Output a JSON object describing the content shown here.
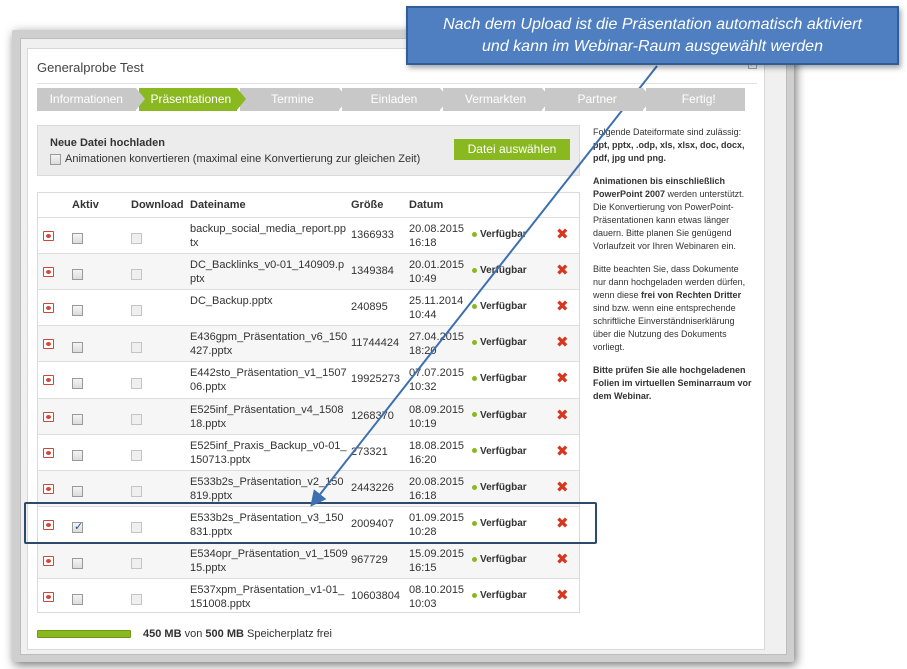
{
  "window": {
    "title": "Generalprobe Test"
  },
  "steps": [
    {
      "label": "Informationen",
      "active": false
    },
    {
      "label": "Präsentationen",
      "active": true
    },
    {
      "label": "Termine",
      "active": false
    },
    {
      "label": "Einladen",
      "active": false
    },
    {
      "label": "Vermarkten",
      "active": false
    },
    {
      "label": "Partner",
      "active": false
    },
    {
      "label": "Fertig!",
      "active": false
    }
  ],
  "upload": {
    "title": "Neue Datei hochladen",
    "convert_label": "Animationen konvertieren (maximal eine Konvertierung zur gleichen Zeit)",
    "select_button": "Datei auswählen"
  },
  "table": {
    "headers": {
      "aktiv": "Aktiv",
      "download": "Download",
      "name": "Dateiname",
      "size": "Größe",
      "date": "Datum"
    },
    "rows": [
      {
        "name": "backup_social_media_report.pptx",
        "size": "1366933",
        "date": "20.08.2015 16:18",
        "status": "Verfügbar",
        "active": false
      },
      {
        "name": "DC_Backlinks_v0-01_140909.pptx",
        "size": "1349384",
        "date": "20.01.2015 10:49",
        "status": "Verfügbar",
        "active": false
      },
      {
        "name": "DC_Backup.pptx",
        "size": "240895",
        "date": "25.11.2014 10:44",
        "status": "Verfügbar",
        "active": false
      },
      {
        "name": "E436gpm_Präsentation_v6_150427.pptx",
        "size": "11744424",
        "date": "27.04.2015 18:20",
        "status": "Verfügbar",
        "active": false
      },
      {
        "name": "E442sto_Präsentation_v1_150706.pptx",
        "size": "19925273",
        "date": "07.07.2015 10:32",
        "status": "Verfügbar",
        "active": false
      },
      {
        "name": "E525inf_Präsentation_v4_150818.pptx",
        "size": "1268370",
        "date": "08.09.2015 10:19",
        "status": "Verfügbar",
        "active": false
      },
      {
        "name": "E525inf_Praxis_Backup_v0-01_150713.pptx",
        "size": "273321",
        "date": "18.08.2015 16:20",
        "status": "Verfügbar",
        "active": false
      },
      {
        "name": "E533b2s_Präsentation_v2_150819.pptx",
        "size": "2443226",
        "date": "20.08.2015 16:18",
        "status": "Verfügbar",
        "active": false
      },
      {
        "name": "E533b2s_Präsentation_v3_150831.pptx",
        "size": "2009407",
        "date": "01.09.2015 10:28",
        "status": "Verfügbar",
        "active": true
      },
      {
        "name": "E534opr_Präsentation_v1_150915.pptx",
        "size": "967729",
        "date": "15.09.2015 16:15",
        "status": "Verfügbar",
        "active": false
      },
      {
        "name": "E537xpm_Präsentation_v1-01_151008.pptx",
        "size": "10603804",
        "date": "08.10.2015 10:03",
        "status": "Verfügbar",
        "active": false
      }
    ]
  },
  "storage": {
    "used": "450 MB",
    "of": "von",
    "total": "500 MB",
    "suffix": "Speicherplatz frei",
    "fraction": 0.9
  },
  "side": {
    "p1_pre": "Folgende Dateiformate sind zulässig: ",
    "p1_formats": "ppt, pptx, .odp, xls, xlsx, doc, docx, pdf, jpg und png.",
    "p2_bold": "Animationen bis einschließlich PowerPoint 2007",
    "p2_rest": " werden unterstützt. Die Konvertierung von PowerPoint-Präsentationen kann etwas länger dauern. Bitte planen Sie genügend Vorlaufzeit vor Ihren Webinaren ein.",
    "p3_pre": "Bitte beachten Sie, dass Dokumente nur dann hochgeladen werden dürfen, wenn diese ",
    "p3_bold": "frei von Rechten Dritter",
    "p3_post": " sind bzw. wenn eine entsprechende schriftliche Einverständniserklärung über die Nutzung des Dokuments vorliegt.",
    "p4": "Bitte prüfen Sie alle hochgeladenen Folien im virtuellen Seminarraum vor dem Webinar."
  },
  "callout": {
    "line1": "Nach dem Upload ist die Präsentation automatisch aktiviert",
    "line2": "und kann im Webinar-Raum ausgewählt werden"
  },
  "colors": {
    "accent": "#8ab821",
    "callout": "#4f7fc0",
    "delete": "#d7361f",
    "highlight": "#2d4a6c"
  },
  "icons": {
    "file": "pptx-file-icon",
    "delete": "delete-x-icon",
    "status": "green-dot-icon"
  }
}
